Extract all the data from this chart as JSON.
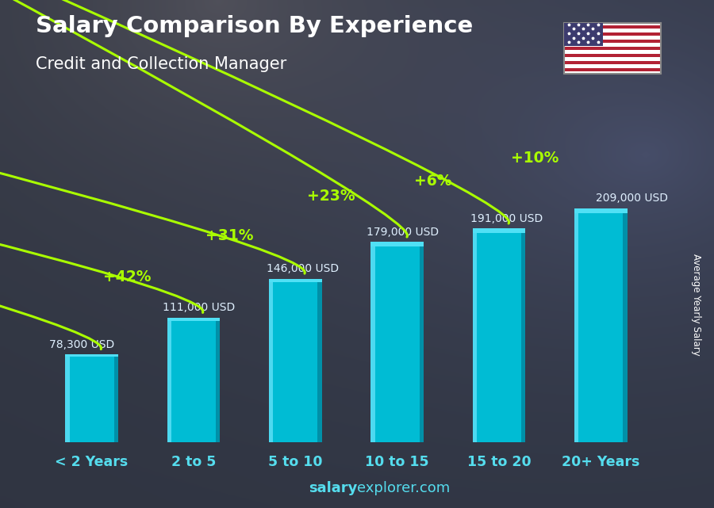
{
  "title": "Salary Comparison By Experience",
  "subtitle": "Credit and Collection Manager",
  "categories": [
    "< 2 Years",
    "2 to 5",
    "5 to 10",
    "10 to 15",
    "15 to 20",
    "20+ Years"
  ],
  "values": [
    78300,
    111000,
    146000,
    179000,
    191000,
    209000
  ],
  "value_labels": [
    "78,300 USD",
    "111,000 USD",
    "146,000 USD",
    "179,000 USD",
    "191,000 USD",
    "209,000 USD"
  ],
  "pct_labels": [
    "+42%",
    "+31%",
    "+23%",
    "+6%",
    "+10%"
  ],
  "bar_color": "#00bcd4",
  "bar_highlight": "#4dd9f0",
  "bar_shadow": "#0090a8",
  "bar_top": "#50e0f5",
  "pct_color": "#aaff00",
  "text_color": "#ffffff",
  "value_label_color": "#e0f0ff",
  "bg_color": "#2a3a4a",
  "footer_text_normal": "explorer.com",
  "footer_text_bold": "salary",
  "ylabel": "Average Yearly Salary",
  "ylim": [
    0,
    250000
  ],
  "figsize": [
    9.0,
    6.41
  ],
  "dpi": 100
}
